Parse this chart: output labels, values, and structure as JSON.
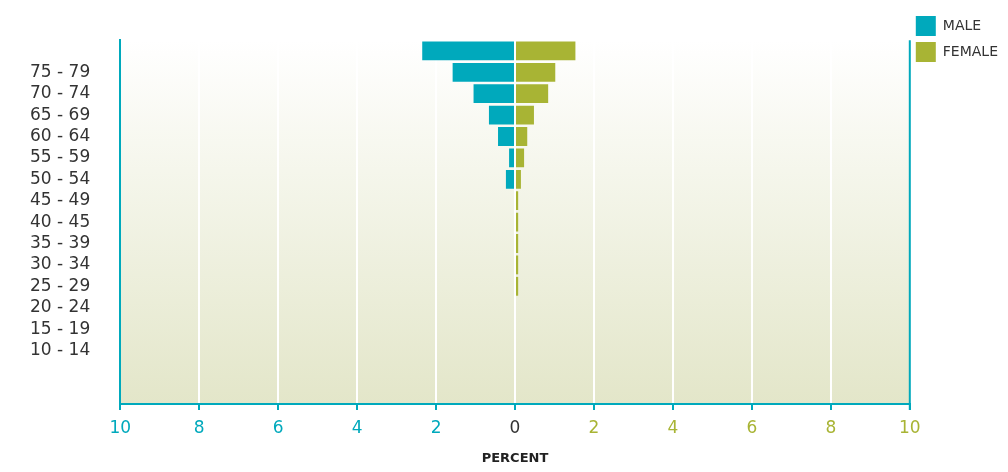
{
  "chart_data": {
    "type": "bar",
    "orientation": "horizontal",
    "stacked": true,
    "xlabel": "PERCENT",
    "categories": [
      null,
      "75 - 79",
      "70 - 74",
      "65 - 69",
      "60 - 64",
      "55 - 59",
      "50 - 54",
      "45 - 49",
      "40 - 45",
      "35 - 39",
      "30 - 34",
      "25 - 29",
      "20 - 24",
      "15 - 19",
      "10 - 14",
      null,
      null
    ],
    "series": [
      {
        "name": "MALE",
        "color": "#00a9bc",
        "values": [
          -2.35,
          -1.58,
          -1.05,
          -0.66,
          -0.43,
          -0.15,
          -0.23,
          0,
          0,
          0,
          0,
          0,
          0,
          0,
          0,
          0,
          0
        ]
      },
      {
        "name": "FEMALE",
        "color": "#a8b434",
        "values": [
          1.53,
          1.02,
          0.84,
          0.48,
          0.31,
          0.23,
          0.15,
          0.08,
          0.08,
          0.08,
          0.08,
          0.08,
          0,
          0,
          0,
          0,
          0
        ]
      }
    ],
    "xlim": [
      -10,
      10
    ],
    "xticks": [
      {
        "value": -10,
        "label": "10"
      },
      {
        "value": -8,
        "label": "8"
      },
      {
        "value": -6,
        "label": "6"
      },
      {
        "value": -4,
        "label": "4"
      },
      {
        "value": -2,
        "label": "2"
      },
      0,
      2,
      4,
      6,
      8,
      10
    ],
    "grid": "x",
    "legend": "top right"
  }
}
